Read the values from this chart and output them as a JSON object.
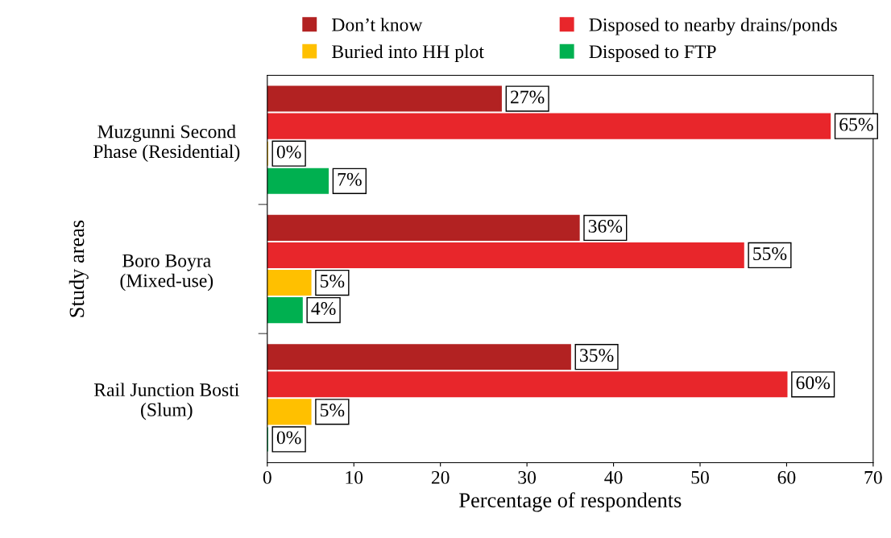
{
  "chart_data": {
    "type": "bar",
    "orientation": "horizontal",
    "xlabel": "Percentage of respondents",
    "ylabel": "Study areas",
    "categories": [
      "Muzgunni Second\nPhase (Residential)",
      "Boro Boyra\n(Mixed-use)",
      "Rail Junction Bosti\n(Slum)"
    ],
    "series": [
      {
        "name": "Don’t know",
        "color": "#b22222",
        "values": [
          27,
          36,
          35
        ],
        "value_labels": [
          "27%",
          "36%",
          "35%"
        ]
      },
      {
        "name": "Disposed to nearby drains/ponds",
        "color": "#e8262b",
        "values": [
          65,
          55,
          60
        ],
        "value_labels": [
          "65%",
          "55%",
          "60%"
        ]
      },
      {
        "name": "Buried into HH plot",
        "color": "#ffc000",
        "values": [
          0,
          5,
          5
        ],
        "value_labels": [
          "0%",
          "5%",
          "5%"
        ]
      },
      {
        "name": "Disposed to FTP",
        "color": "#00b050",
        "values": [
          7,
          4,
          0
        ],
        "value_labels": [
          "7%",
          "4%",
          "0%"
        ]
      }
    ],
    "xlim": [
      0,
      70
    ],
    "xticks": [
      0,
      10,
      20,
      30,
      40,
      50,
      60,
      70
    ],
    "grid": false,
    "legend": "top"
  }
}
